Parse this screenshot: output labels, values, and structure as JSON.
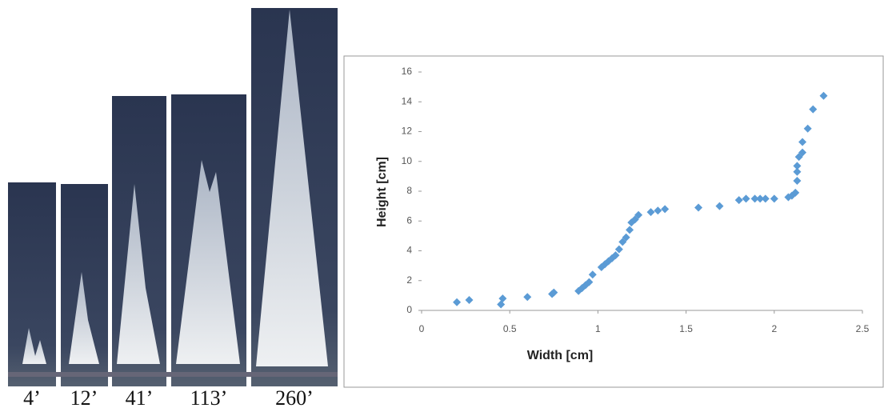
{
  "photo_labels": [
    "4’",
    "12’",
    "41’",
    "113’",
    "260’"
  ],
  "chart_data": {
    "type": "scatter",
    "x_label": "Width    [cm]",
    "y_label": "Height    [cm]",
    "series": [
      {
        "color": "#5b9bd5",
        "x": [
          0.2,
          0.27,
          0.45,
          0.46,
          0.6,
          0.74,
          0.75,
          0.89,
          0.91,
          0.93,
          0.95,
          0.97,
          1.02,
          1.04,
          1.06,
          1.08,
          1.1,
          1.12,
          1.14,
          1.16,
          1.18,
          1.19,
          1.21,
          1.23,
          1.3,
          1.34,
          1.38,
          1.57,
          1.69,
          1.8,
          1.84,
          1.89,
          1.92,
          1.95,
          2.0,
          2.08,
          2.1,
          2.12,
          2.13,
          2.13,
          2.13,
          2.14,
          2.16,
          2.16,
          2.19,
          2.22,
          2.28
        ],
        "values": [
          0.55,
          0.7,
          0.4,
          0.8,
          0.9,
          1.1,
          1.2,
          1.3,
          1.5,
          1.7,
          1.9,
          2.4,
          2.9,
          3.1,
          3.3,
          3.5,
          3.7,
          4.1,
          4.6,
          4.9,
          5.4,
          5.9,
          6.1,
          6.4,
          6.6,
          6.7,
          6.8,
          6.9,
          7.0,
          7.4,
          7.5,
          7.5,
          7.5,
          7.5,
          7.5,
          7.6,
          7.7,
          7.9,
          8.7,
          9.3,
          9.7,
          10.3,
          10.6,
          11.3,
          12.2,
          13.5,
          14.4
        ]
      }
    ],
    "xlim": [
      0,
      2.5
    ],
    "xticks": [
      0,
      0.5,
      1,
      1.5,
      2,
      2.5
    ],
    "ylim": [
      0,
      16
    ],
    "yticks": [
      0,
      2,
      4,
      6,
      8,
      10,
      12,
      14,
      16
    ]
  }
}
